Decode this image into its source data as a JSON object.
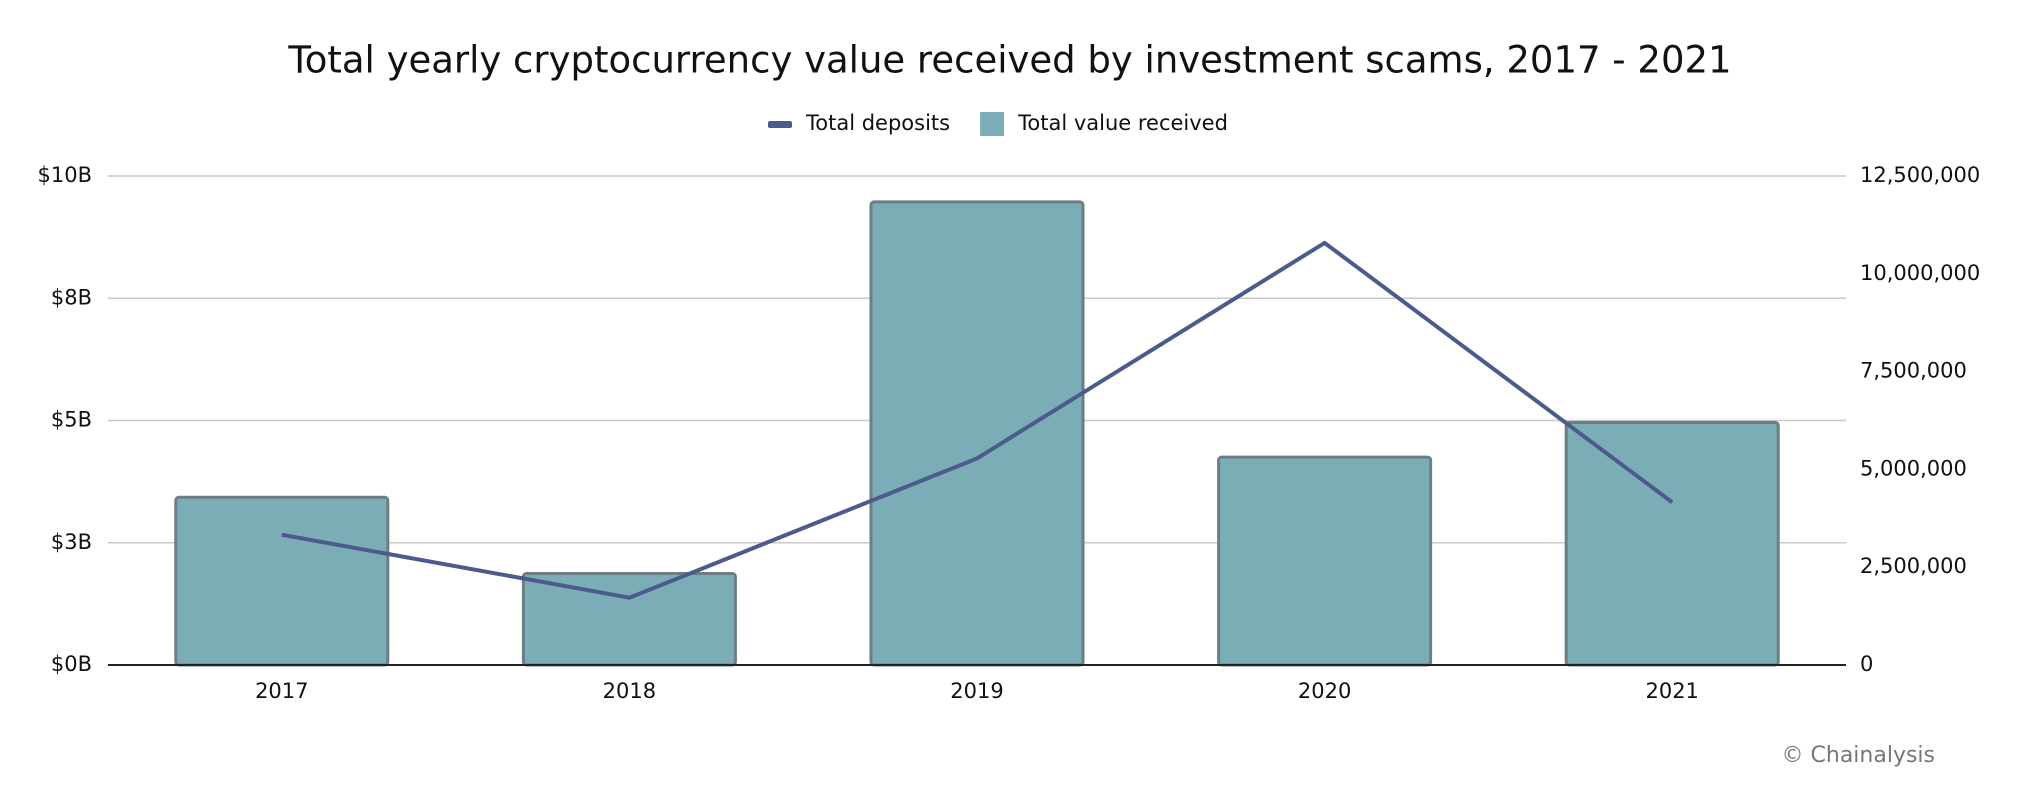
{
  "chart_data": {
    "type": "bar",
    "title": "Total yearly cryptocurrency value received by investment scams, 2017 - 2021",
    "categories": [
      "2017",
      "2018",
      "2019",
      "2020",
      "2021"
    ],
    "series": [
      {
        "name": "Total deposits",
        "type": "line",
        "axis": "y2",
        "color": "#4b5b8c",
        "values": [
          3330000,
          1720000,
          5280000,
          10790000,
          4160000
        ]
      },
      {
        "name": "Total value received",
        "type": "bar",
        "color": "#7badb6",
        "values": [
          3.43,
          1.87,
          9.47,
          4.25,
          4.96
        ]
      }
    ],
    "ylim": [
      0,
      10
    ],
    "yticks": [
      {
        "value": 0,
        "label": "$0B"
      },
      {
        "value": 2.5,
        "label": "$3B"
      },
      {
        "value": 5,
        "label": "$5B"
      },
      {
        "value": 7.5,
        "label": "$8B"
      },
      {
        "value": 10,
        "label": "$10B"
      }
    ],
    "y2lim": [
      0,
      12500000
    ],
    "y2ticks": [
      0,
      {
        "value": 2500000,
        "label": "2,500,000"
      },
      {
        "value": 5000000,
        "label": "5,000,000"
      },
      {
        "value": 7500000,
        "label": "7,500,000"
      },
      {
        "value": 10000000,
        "label": "10,000,000"
      },
      {
        "value": 12500000,
        "label": "12,500,000"
      }
    ],
    "grid": true,
    "legend": "top",
    "credit": "© Chainalysis"
  }
}
